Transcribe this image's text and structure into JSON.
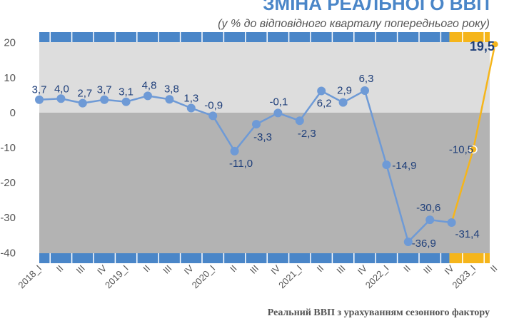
{
  "chart_data": {
    "type": "line",
    "title": "ЗМІНА РЕАЛЬНОГО ВВП",
    "subtitle": "(у % до відповідного кварталу попереднього року)",
    "xlabel": "Реальний ВВП з урахуванням сезонного фактору",
    "ylabel": "",
    "ylim": [
      -43,
      23
    ],
    "yticks": [
      20,
      10,
      0,
      -10,
      -20,
      -30,
      -40
    ],
    "grid": false,
    "categories": [
      "2018_I",
      "II",
      "III",
      "IV",
      "2019_I",
      "II",
      "III",
      "IV",
      "2020_I",
      "II",
      "III",
      "IV",
      "2021_I",
      "II",
      "III",
      "IV",
      "2022_I",
      "II",
      "III",
      "IV",
      "2023_I",
      "II"
    ],
    "series": [
      {
        "name": "",
        "values": [
          3.7,
          4.0,
          2.7,
          3.7,
          3.1,
          4.8,
          3.8,
          1.3,
          -0.9,
          -11.0,
          -3.3,
          -0.1,
          -2.3,
          6.2,
          2.9,
          6.3,
          -14.9,
          -36.9,
          -30.6,
          -31.4,
          -10.5,
          19.5
        ],
        "labels": [
          "3,7",
          "4,0",
          "2,7",
          "3,7",
          "3,1",
          "4,8",
          "3,8",
          "1,3",
          "-0,9",
          "-11,0",
          "-3,3",
          "-0,1",
          "-2,3",
          "6,2",
          "2,9",
          "6,3",
          "-14,9",
          "-36,9",
          "-30,6",
          "-31,4",
          "-10,5",
          "19,5"
        ]
      }
    ],
    "highlight_segment_from_index": 19,
    "colors": {
      "title": "#4a86c8",
      "line": "#6e9ad6",
      "highlight_line": "#f5b51b",
      "positive_band": "#dddddd",
      "negative_band": "#b3b3b3",
      "blue_strip": "#4a86c8",
      "yellow_strip": "#f5b51b",
      "data_label": "#1f3f7a"
    }
  }
}
